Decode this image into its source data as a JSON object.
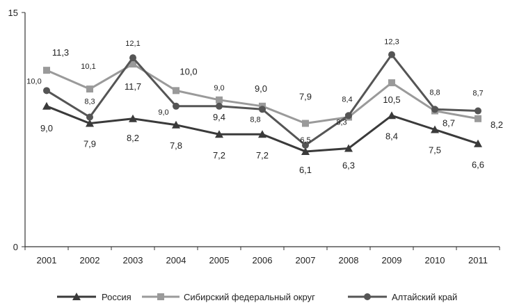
{
  "chart_data": {
    "type": "line",
    "categories": [
      "2001",
      "2002",
      "2003",
      "2004",
      "2005",
      "2006",
      "2007",
      "2008",
      "2009",
      "2010",
      "2011"
    ],
    "ylim": [
      0,
      15
    ],
    "yticks": [
      "0",
      "15"
    ],
    "grid": false,
    "legend_position": "bottom",
    "series": [
      {
        "name": "Россия",
        "color": "#3a3a3a",
        "marker": "triangle",
        "values": [
          9.0,
          7.9,
          8.2,
          7.8,
          7.2,
          7.2,
          6.1,
          6.3,
          8.4,
          7.5,
          6.6
        ],
        "labels": [
          "9,0",
          "7,9",
          "8,2",
          "7,8",
          "7,2",
          "7,2",
          "6,1",
          "6,3",
          "8,4",
          "7,5",
          "6,6"
        ]
      },
      {
        "name": "Сибирский федеральный округ",
        "color": "#9a9a9a",
        "marker": "square",
        "values": [
          11.3,
          10.1,
          11.7,
          10.0,
          9.4,
          9.0,
          7.9,
          8.3,
          10.5,
          8.7,
          8.2
        ],
        "labels": [
          "11,3",
          "10,1",
          "11,7",
          "10,0",
          "9,4",
          "9,0",
          "7,9",
          "8,3",
          "10,5",
          "8,7",
          "8,2"
        ]
      },
      {
        "name": "Алтайский край",
        "color": "#555555",
        "marker": "circle",
        "values": [
          10.0,
          8.3,
          12.1,
          9.0,
          9.0,
          8.8,
          6.5,
          8.4,
          12.3,
          8.8,
          8.7
        ],
        "labels": [
          "10,0",
          "8,3",
          "12,1",
          "9,0",
          "9,0",
          "8,8",
          "6,5",
          "8,4",
          "12,3",
          "8,8",
          "8,7"
        ]
      }
    ]
  }
}
